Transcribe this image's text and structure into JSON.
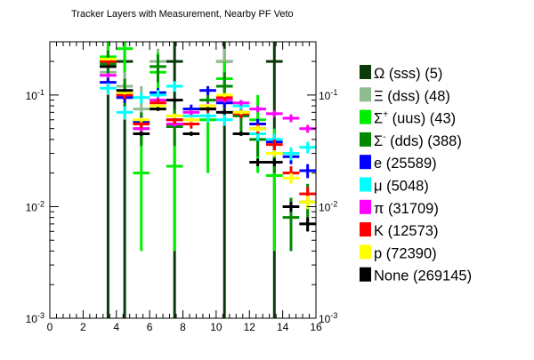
{
  "chart_data": {
    "type": "scatter",
    "title": "Tracker Layers with Measurement, Nearby PF Veto",
    "xlabel": "",
    "ylabel": "",
    "xlim": [
      0,
      16
    ],
    "ylim": [
      0.001,
      0.3
    ],
    "yscale": "log",
    "x_ticks": [
      "0",
      "2",
      "4",
      "6",
      "8",
      "10",
      "12",
      "14",
      "16"
    ],
    "y_ticks": [
      {
        "value": 0.1,
        "base": "10",
        "exp": "-1"
      },
      {
        "value": 0.01,
        "base": "10",
        "exp": "-2"
      },
      {
        "value": 0.001,
        "base": "10",
        "exp": "-3"
      }
    ],
    "grid": false,
    "legend_position": "right",
    "series": [
      {
        "name": "Ω (sss) (5)",
        "label_main": "Ω (sss) (5)",
        "sup": "",
        "label_rest": "",
        "color": "#0a3a0a",
        "points": [
          [
            3.5,
            0.2,
            0.001,
            0.3
          ],
          [
            4.5,
            0.2,
            0.001,
            0.3
          ],
          [
            7.5,
            0.2,
            0.001,
            0.3
          ],
          [
            10.5,
            0.2,
            0.001,
            0.3
          ],
          [
            13.5,
            0.2,
            0.001,
            0.3
          ]
        ]
      },
      {
        "name": "Ξ (dss) (48)",
        "label_main": "Ξ (dss) (48)",
        "sup": "",
        "label_rest": "",
        "color": "#8fbc8f",
        "points": [
          [
            3.5,
            0.16,
            0.1,
            0.24
          ],
          [
            4.5,
            0.12,
            0.06,
            0.2
          ],
          [
            5.5,
            0.075,
            0.04,
            0.12
          ],
          [
            6.5,
            0.2,
            0.13,
            0.26
          ],
          [
            9.5,
            0.06,
            0.04,
            0.09
          ],
          [
            10.5,
            0.2,
            0.14,
            0.26
          ]
        ]
      },
      {
        "name": "Σ+ (uus) (43)",
        "label_main": "Σ",
        "sup": "+",
        "label_rest": " (uus) (43)",
        "color": "#00ee00",
        "points": [
          [
            3.5,
            0.22,
            0.15,
            0.3
          ],
          [
            4.5,
            0.26,
            0.16,
            0.3
          ],
          [
            5.5,
            0.02,
            0.004,
            0.06
          ],
          [
            6.5,
            0.16,
            0.08,
            0.24
          ],
          [
            7.5,
            0.023,
            0.004,
            0.06
          ],
          [
            9.5,
            0.06,
            0.02,
            0.1
          ],
          [
            10.5,
            0.14,
            0.08,
            0.2
          ],
          [
            12.5,
            0.06,
            0.02,
            0.1
          ],
          [
            13.5,
            0.019,
            0.004,
            0.05
          ]
        ]
      },
      {
        "name": "Σ- (dds) (388)",
        "label_main": "Σ",
        "sup": "-",
        "label_rest": " (dds) (388)",
        "color": "#008800",
        "points": [
          [
            3.5,
            0.19,
            0.14,
            0.25
          ],
          [
            4.5,
            0.1,
            0.07,
            0.14
          ],
          [
            5.5,
            0.05,
            0.035,
            0.07
          ],
          [
            6.5,
            0.18,
            0.13,
            0.23
          ],
          [
            7.5,
            0.052,
            0.035,
            0.075
          ],
          [
            9.5,
            0.09,
            0.065,
            0.12
          ],
          [
            10.5,
            0.12,
            0.09,
            0.16
          ],
          [
            11.5,
            0.065,
            0.045,
            0.09
          ],
          [
            12.5,
            0.04,
            0.028,
            0.055
          ],
          [
            13.5,
            0.03,
            0.02,
            0.045
          ],
          [
            14.5,
            0.008,
            0.004,
            0.012
          ],
          [
            15.5,
            0.011,
            0.006,
            0.016
          ]
        ]
      },
      {
        "name": "e (25589)",
        "label_main": "e (25589)",
        "sup": "",
        "label_rest": "",
        "color": "#0000ff",
        "points": [
          [
            3.5,
            0.13,
            0.118,
            0.142
          ],
          [
            4.5,
            0.095,
            0.085,
            0.105
          ],
          [
            5.5,
            0.058,
            0.052,
            0.064
          ],
          [
            6.5,
            0.105,
            0.095,
            0.115
          ],
          [
            7.5,
            0.06,
            0.054,
            0.066
          ],
          [
            8.5,
            0.075,
            0.068,
            0.082
          ],
          [
            9.5,
            0.11,
            0.1,
            0.12
          ],
          [
            10.5,
            0.085,
            0.077,
            0.093
          ],
          [
            11.5,
            0.07,
            0.063,
            0.077
          ],
          [
            12.5,
            0.055,
            0.049,
            0.061
          ],
          [
            13.5,
            0.038,
            0.033,
            0.043
          ],
          [
            14.5,
            0.028,
            0.024,
            0.032
          ],
          [
            15.5,
            0.021,
            0.018,
            0.024
          ]
        ]
      },
      {
        "name": "μ (5048)",
        "label_main": "μ (5048)",
        "sup": "",
        "label_rest": "",
        "color": "#00ffff",
        "points": [
          [
            3.5,
            0.115,
            0.102,
            0.128
          ],
          [
            4.5,
            0.07,
            0.061,
            0.079
          ],
          [
            5.5,
            0.095,
            0.084,
            0.106
          ],
          [
            6.5,
            0.1,
            0.089,
            0.111
          ],
          [
            7.5,
            0.12,
            0.107,
            0.133
          ],
          [
            8.5,
            0.065,
            0.057,
            0.073
          ],
          [
            9.5,
            0.065,
            0.057,
            0.073
          ],
          [
            10.5,
            0.06,
            0.053,
            0.067
          ],
          [
            11.5,
            0.08,
            0.071,
            0.089
          ],
          [
            12.5,
            0.045,
            0.039,
            0.051
          ],
          [
            13.5,
            0.04,
            0.035,
            0.045
          ],
          [
            14.5,
            0.03,
            0.026,
            0.034
          ],
          [
            15.5,
            0.034,
            0.03,
            0.038
          ]
        ]
      },
      {
        "name": "π (31709)",
        "label_main": "π (31709)",
        "sup": "",
        "label_rest": "",
        "color": "#ff00ff",
        "points": [
          [
            3.5,
            0.15,
            0.142,
            0.158
          ],
          [
            4.5,
            0.1,
            0.094,
            0.106
          ],
          [
            5.5,
            0.05,
            0.047,
            0.053
          ],
          [
            6.5,
            0.09,
            0.085,
            0.095
          ],
          [
            7.5,
            0.055,
            0.052,
            0.058
          ],
          [
            8.5,
            0.07,
            0.066,
            0.074
          ],
          [
            9.5,
            0.08,
            0.075,
            0.085
          ],
          [
            10.5,
            0.09,
            0.085,
            0.095
          ],
          [
            11.5,
            0.085,
            0.08,
            0.09
          ],
          [
            12.5,
            0.075,
            0.07,
            0.08
          ],
          [
            13.5,
            0.068,
            0.063,
            0.073
          ],
          [
            14.5,
            0.062,
            0.057,
            0.067
          ],
          [
            15.5,
            0.05,
            0.046,
            0.054
          ]
        ]
      },
      {
        "name": "K (12573)",
        "label_main": "K (12573)",
        "sup": "",
        "label_rest": "",
        "color": "#ff0000",
        "points": [
          [
            3.5,
            0.2,
            0.186,
            0.214
          ],
          [
            4.5,
            0.1,
            0.092,
            0.108
          ],
          [
            5.5,
            0.055,
            0.05,
            0.06
          ],
          [
            6.5,
            0.085,
            0.078,
            0.092
          ],
          [
            7.5,
            0.06,
            0.055,
            0.065
          ],
          [
            8.5,
            0.055,
            0.05,
            0.06
          ],
          [
            9.5,
            0.075,
            0.069,
            0.081
          ],
          [
            10.5,
            0.095,
            0.088,
            0.102
          ],
          [
            11.5,
            0.068,
            0.062,
            0.074
          ],
          [
            12.5,
            0.05,
            0.045,
            0.055
          ],
          [
            13.5,
            0.036,
            0.032,
            0.04
          ],
          [
            14.5,
            0.02,
            0.017,
            0.023
          ],
          [
            15.5,
            0.013,
            0.011,
            0.015
          ]
        ]
      },
      {
        "name": "p (72390)",
        "label_main": "p (72390)",
        "sup": "",
        "label_rest": "",
        "color": "#ffff00",
        "points": [
          [
            3.5,
            0.21,
            0.204,
            0.216
          ],
          [
            4.5,
            0.105,
            0.101,
            0.109
          ],
          [
            5.5,
            0.06,
            0.057,
            0.063
          ],
          [
            6.5,
            0.08,
            0.077,
            0.083
          ],
          [
            7.5,
            0.065,
            0.062,
            0.068
          ],
          [
            8.5,
            0.06,
            0.057,
            0.063
          ],
          [
            9.5,
            0.08,
            0.077,
            0.083
          ],
          [
            10.5,
            0.1,
            0.096,
            0.104
          ],
          [
            11.5,
            0.07,
            0.067,
            0.073
          ],
          [
            12.5,
            0.05,
            0.047,
            0.053
          ],
          [
            13.5,
            0.03,
            0.028,
            0.032
          ],
          [
            14.5,
            0.018,
            0.016,
            0.02
          ],
          [
            15.5,
            0.011,
            0.0095,
            0.0125
          ]
        ]
      },
      {
        "name": "None (269145)",
        "label_main": "None (269145)",
        "sup": "",
        "label_rest": "",
        "color": "#000000",
        "points": [
          [
            3.5,
            0.18,
            0.176,
            0.184
          ],
          [
            4.5,
            0.11,
            0.107,
            0.113
          ],
          [
            5.5,
            0.045,
            0.043,
            0.047
          ],
          [
            6.5,
            0.075,
            0.072,
            0.078
          ],
          [
            7.5,
            0.09,
            0.087,
            0.093
          ],
          [
            8.5,
            0.045,
            0.043,
            0.047
          ],
          [
            9.5,
            0.075,
            0.072,
            0.078
          ],
          [
            10.5,
            0.07,
            0.067,
            0.073
          ],
          [
            11.5,
            0.045,
            0.043,
            0.047
          ],
          [
            12.5,
            0.025,
            0.023,
            0.027
          ],
          [
            13.5,
            0.025,
            0.023,
            0.027
          ],
          [
            14.5,
            0.01,
            0.009,
            0.011
          ],
          [
            15.5,
            0.007,
            0.006,
            0.008
          ]
        ]
      }
    ]
  }
}
